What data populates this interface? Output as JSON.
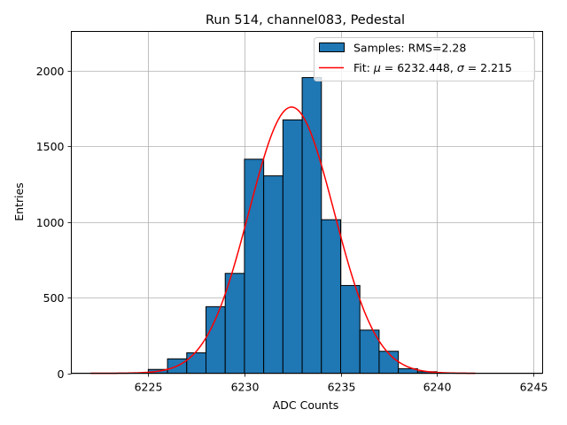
{
  "chart_data": {
    "type": "bar",
    "title": "Run 514, channel083, Pedestal",
    "xlabel": "ADC Counts",
    "ylabel": "Entries",
    "xlim": [
      6221,
      6245.5
    ],
    "ylim": [
      0,
      2260
    ],
    "grid": true,
    "legend_position": "top-right",
    "x_ticks": [
      6225,
      6230,
      6235,
      6240,
      6245
    ],
    "y_ticks": [
      0,
      500,
      1000,
      1500,
      2000
    ],
    "bin_edges": [
      6225,
      6226,
      6227,
      6228,
      6229,
      6230,
      6231,
      6232,
      6233,
      6234,
      6235,
      6236,
      6237,
      6238,
      6239,
      6240
    ],
    "series": [
      {
        "name": "Samples: RMS=2.28",
        "kind": "histogram",
        "values": [
          25,
          95,
          135,
          440,
          660,
          1415,
          1305,
          1675,
          1955,
          1015,
          580,
          285,
          145,
          30,
          10
        ],
        "color": "#1f77b4",
        "edge_color": "#000000"
      },
      {
        "name": "Fit: μ = 6232.448, σ = 2.215",
        "kind": "gaussian-fit",
        "mu": 6232.448,
        "sigma": 2.215,
        "amplitude": 1760,
        "x_range": [
          6222,
          6242
        ],
        "color": "#ff0000"
      }
    ],
    "legend": {
      "entry_1": {
        "prefix": "Samples: RMS=2.28"
      },
      "entry_2": {
        "prefix": "Fit: ",
        "mu_symbol": "μ",
        "mid": " = 6232.448, ",
        "sigma_symbol": "σ",
        "suffix": " = 2.215"
      }
    }
  }
}
